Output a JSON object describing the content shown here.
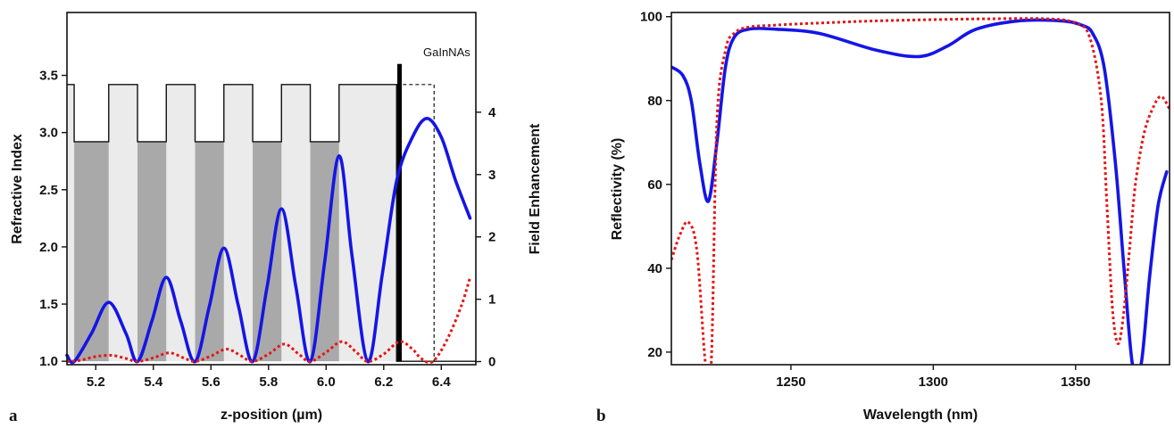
{
  "chart_data": [
    {
      "panel_label": "a",
      "type": "line",
      "xlabel": "z-position (µm)",
      "ylabel_left": "Refractive Index",
      "ylabel_right": "Field Enhancement",
      "xlim": [
        5.1,
        6.52
      ],
      "ylim_left": [
        0.97,
        4.05
      ],
      "ylim_right": [
        -0.05,
        5.6
      ],
      "x_ticks": [
        "5.2",
        "5.4",
        "5.6",
        "5.8",
        "6.0",
        "6.2",
        "6.4"
      ],
      "y_left_ticks": [
        "1.0",
        "1.5",
        "2.0",
        "2.5",
        "3.0",
        "3.5"
      ],
      "y_right_ticks": [
        "0",
        "1",
        "2",
        "3",
        "4"
      ],
      "annotation": "GaInNAs",
      "annotation_x": 6.255,
      "layers": {
        "n_high": 3.42,
        "n_low": 2.92,
        "n_air": 1.0,
        "high_index_segments": [
          [
            5.1,
            5.125
          ],
          [
            5.245,
            5.345
          ],
          [
            5.445,
            5.545
          ],
          [
            5.645,
            5.745
          ],
          [
            5.845,
            5.945
          ],
          [
            6.045,
            6.245
          ]
        ],
        "low_index_segments": [
          [
            5.125,
            5.245
          ],
          [
            5.345,
            5.445
          ],
          [
            5.545,
            5.645
          ],
          [
            5.745,
            5.845
          ],
          [
            5.945,
            6.045
          ]
        ],
        "cavity_end": 6.375,
        "dashed_cavity": [
          6.245,
          6.375
        ]
      },
      "series": [
        {
          "style": "solid",
          "color": "#1515e6",
          "x": [
            5.1,
            5.125,
            5.185,
            5.245,
            5.305,
            5.345,
            5.395,
            5.445,
            5.495,
            5.545,
            5.595,
            5.645,
            5.695,
            5.745,
            5.795,
            5.845,
            5.895,
            5.945,
            5.995,
            6.045,
            6.09,
            6.145,
            6.195,
            6.245,
            6.3,
            6.35,
            6.4,
            6.45,
            6.5
          ],
          "y": [
            0.1,
            0.0,
            0.45,
            0.95,
            0.45,
            0.0,
            0.65,
            1.35,
            0.65,
            0.0,
            0.9,
            1.82,
            0.9,
            0.0,
            1.2,
            2.45,
            1.2,
            0.0,
            1.6,
            3.3,
            1.7,
            0.0,
            1.4,
            2.9,
            3.6,
            3.9,
            3.6,
            2.9,
            2.3
          ]
        },
        {
          "style": "dotted",
          "color": "#e61515",
          "x": [
            5.1,
            5.145,
            5.2,
            5.255,
            5.305,
            5.345,
            5.4,
            5.455,
            5.505,
            5.545,
            5.6,
            5.655,
            5.705,
            5.745,
            5.8,
            5.855,
            5.905,
            5.945,
            6.0,
            6.055,
            6.105,
            6.145,
            6.2,
            6.255,
            6.3,
            6.33,
            6.37,
            6.42,
            6.47,
            6.5
          ],
          "y": [
            0.0,
            0.02,
            0.08,
            0.1,
            0.05,
            0.0,
            0.06,
            0.14,
            0.06,
            0.0,
            0.09,
            0.2,
            0.09,
            0.0,
            0.12,
            0.28,
            0.12,
            0.0,
            0.15,
            0.32,
            0.15,
            0.0,
            0.12,
            0.32,
            0.2,
            0.05,
            0.0,
            0.35,
            0.9,
            1.35
          ]
        }
      ]
    },
    {
      "panel_label": "b",
      "type": "line",
      "xlabel": "Wavelength (nm)",
      "ylabel": "Reflectivity (%)",
      "xlim": [
        1208,
        1383
      ],
      "ylim": [
        17,
        101
      ],
      "x_ticks": [
        "1250",
        "1300",
        "1350"
      ],
      "y_ticks": [
        "20",
        "40",
        "60",
        "80",
        "100"
      ],
      "series": [
        {
          "style": "solid",
          "color": "#1515e6",
          "x": [
            1208,
            1212,
            1215,
            1218,
            1221,
            1224,
            1227,
            1230,
            1235,
            1245,
            1260,
            1280,
            1295,
            1305,
            1315,
            1330,
            1345,
            1352,
            1356,
            1360,
            1364,
            1367,
            1370,
            1373,
            1376,
            1379,
            1382
          ],
          "y": [
            88,
            86,
            80,
            65,
            56,
            70,
            88,
            95,
            97,
            97,
            96,
            92,
            90.5,
            93,
            97,
            99,
            99,
            98,
            96,
            88,
            65,
            40,
            17,
            17,
            38,
            55,
            63
          ]
        },
        {
          "style": "dotted",
          "color": "#e61515",
          "x": [
            1208,
            1211,
            1214,
            1217,
            1220,
            1222,
            1224,
            1227,
            1230,
            1235,
            1245,
            1260,
            1280,
            1300,
            1320,
            1340,
            1350,
            1355,
            1359,
            1361,
            1363,
            1365,
            1367,
            1369,
            1371,
            1374,
            1377,
            1380,
            1383
          ],
          "y": [
            42,
            48,
            51,
            44,
            17,
            17,
            75,
            92,
            96,
            97.5,
            98,
            98.5,
            99,
            99.3,
            99.5,
            99.5,
            98.5,
            95,
            80,
            55,
            30,
            22,
            30,
            45,
            60,
            72,
            78,
            81,
            78
          ]
        }
      ]
    }
  ]
}
